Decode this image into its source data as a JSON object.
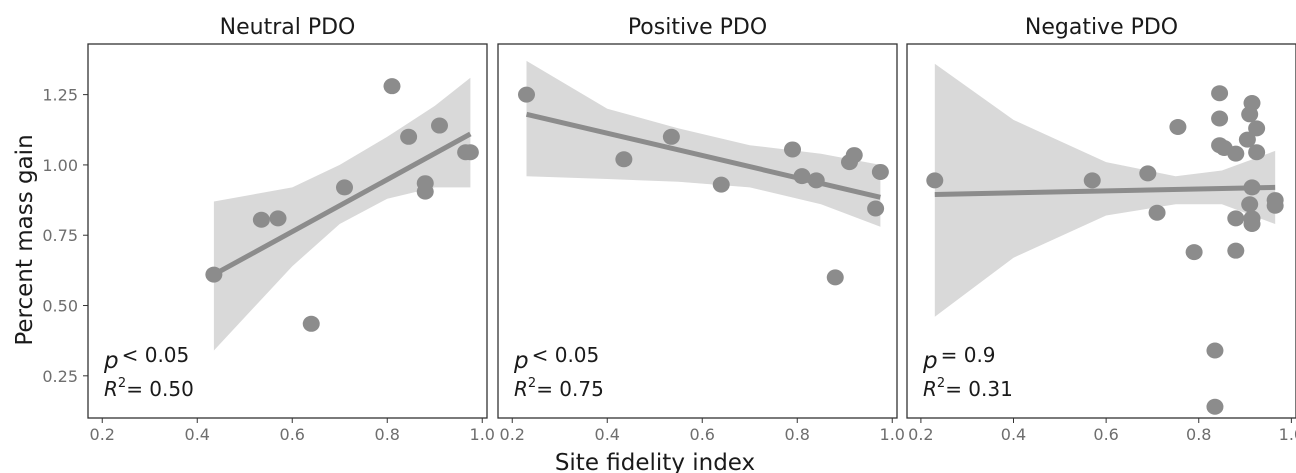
{
  "colors": {
    "point": "#8c8c8c",
    "line": "#8c8c8c",
    "ribbon": "#d9d9d9",
    "frame": "#333333",
    "text": "#1a1a1a",
    "tick_text": "#6e6e6e"
  },
  "chart_data": [
    {
      "type": "scatter",
      "title": "Neutral PDO",
      "xlabel": "Site fidelity index",
      "ylabel": "Percent mass gain",
      "xlim": [
        0.17,
        1.01
      ],
      "ylim": [
        0.1,
        1.43
      ],
      "xticks": [
        "0.2",
        "0.4",
        "0.6",
        "0.8",
        "1.0"
      ],
      "yticks": [
        "0.25",
        "0.50",
        "0.75",
        "1.00",
        "1.25"
      ],
      "grid": false,
      "points": [
        {
          "x": 0.435,
          "y": 0.61
        },
        {
          "x": 0.535,
          "y": 0.805
        },
        {
          "x": 0.57,
          "y": 0.81
        },
        {
          "x": 0.64,
          "y": 0.435
        },
        {
          "x": 0.71,
          "y": 0.92
        },
        {
          "x": 0.81,
          "y": 1.28
        },
        {
          "x": 0.845,
          "y": 1.1
        },
        {
          "x": 0.88,
          "y": 0.935
        },
        {
          "x": 0.88,
          "y": 0.905
        },
        {
          "x": 0.91,
          "y": 1.14
        },
        {
          "x": 0.965,
          "y": 1.045
        },
        {
          "x": 0.975,
          "y": 1.045
        }
      ],
      "fit_line": [
        {
          "x": 0.435,
          "y": 0.61
        },
        {
          "x": 0.975,
          "y": 1.11
        }
      ],
      "confidence_band": {
        "x": [
          0.435,
          0.6,
          0.7,
          0.8,
          0.9,
          0.975
        ],
        "upper": [
          0.87,
          0.92,
          1.0,
          1.1,
          1.21,
          1.31
        ],
        "lower": [
          0.34,
          0.64,
          0.79,
          0.88,
          0.92,
          0.92
        ]
      },
      "p_label": "p",
      "p_value": "< 0.05",
      "r2_prefix": "R",
      "r2_exponent": "2",
      "r2_value": "= 0.50"
    },
    {
      "type": "scatter",
      "title": "Positive PDO",
      "xlabel": "Site fidelity index",
      "ylabel": "Percent mass gain",
      "xlim": [
        0.17,
        1.01
      ],
      "ylim": [
        0.1,
        1.43
      ],
      "xticks": [
        "0.2",
        "0.4",
        "0.6",
        "0.8",
        "1.0"
      ],
      "yticks": [
        "0.25",
        "0.50",
        "0.75",
        "1.00",
        "1.25"
      ],
      "grid": false,
      "points": [
        {
          "x": 0.23,
          "y": 1.25
        },
        {
          "x": 0.435,
          "y": 1.02
        },
        {
          "x": 0.535,
          "y": 1.1
        },
        {
          "x": 0.64,
          "y": 0.93
        },
        {
          "x": 0.79,
          "y": 1.055
        },
        {
          "x": 0.81,
          "y": 0.96
        },
        {
          "x": 0.84,
          "y": 0.945
        },
        {
          "x": 0.88,
          "y": 0.6
        },
        {
          "x": 0.91,
          "y": 1.01
        },
        {
          "x": 0.92,
          "y": 1.035
        },
        {
          "x": 0.965,
          "y": 0.845
        },
        {
          "x": 0.975,
          "y": 0.975
        }
      ],
      "fit_line": [
        {
          "x": 0.23,
          "y": 1.18
        },
        {
          "x": 0.975,
          "y": 0.885
        }
      ],
      "confidence_band": {
        "x": [
          0.23,
          0.4,
          0.55,
          0.7,
          0.85,
          0.975
        ],
        "upper": [
          1.37,
          1.2,
          1.13,
          1.07,
          1.04,
          1.0
        ],
        "lower": [
          0.96,
          0.95,
          0.94,
          0.92,
          0.86,
          0.78
        ]
      },
      "p_label": "p",
      "p_value": "< 0.05",
      "r2_prefix": "R",
      "r2_exponent": "2",
      "r2_value": "= 0.75"
    },
    {
      "type": "scatter",
      "title": "Negative PDO",
      "xlabel": "Site fidelity index",
      "ylabel": "Percent mass gain",
      "xlim": [
        0.17,
        1.01
      ],
      "ylim": [
        0.1,
        1.43
      ],
      "xticks": [
        "0.2",
        "0.4",
        "0.6",
        "0.8",
        "1.0"
      ],
      "yticks": [
        "0.25",
        "0.50",
        "0.75",
        "1.00",
        "1.25"
      ],
      "grid": false,
      "points": [
        {
          "x": 0.23,
          "y": 0.945
        },
        {
          "x": 0.57,
          "y": 0.945
        },
        {
          "x": 0.69,
          "y": 0.97
        },
        {
          "x": 0.71,
          "y": 0.83
        },
        {
          "x": 0.755,
          "y": 1.135
        },
        {
          "x": 0.79,
          "y": 0.69
        },
        {
          "x": 0.835,
          "y": 0.34
        },
        {
          "x": 0.835,
          "y": 0.14
        },
        {
          "x": 0.845,
          "y": 1.255
        },
        {
          "x": 0.845,
          "y": 1.165
        },
        {
          "x": 0.845,
          "y": 1.07
        },
        {
          "x": 0.855,
          "y": 1.06
        },
        {
          "x": 0.88,
          "y": 1.04
        },
        {
          "x": 0.88,
          "y": 0.81
        },
        {
          "x": 0.88,
          "y": 0.695
        },
        {
          "x": 0.905,
          "y": 1.09
        },
        {
          "x": 0.91,
          "y": 1.18
        },
        {
          "x": 0.91,
          "y": 0.86
        },
        {
          "x": 0.915,
          "y": 1.22
        },
        {
          "x": 0.915,
          "y": 0.92
        },
        {
          "x": 0.915,
          "y": 0.81
        },
        {
          "x": 0.915,
          "y": 0.79
        },
        {
          "x": 0.925,
          "y": 1.13
        },
        {
          "x": 0.925,
          "y": 1.045
        },
        {
          "x": 0.965,
          "y": 0.875
        },
        {
          "x": 0.965,
          "y": 0.855
        }
      ],
      "fit_line": [
        {
          "x": 0.23,
          "y": 0.895
        },
        {
          "x": 0.965,
          "y": 0.92
        }
      ],
      "confidence_band": {
        "x": [
          0.23,
          0.4,
          0.6,
          0.75,
          0.85,
          0.965
        ],
        "upper": [
          1.36,
          1.16,
          1.01,
          0.96,
          0.98,
          1.05
        ],
        "lower": [
          0.46,
          0.67,
          0.82,
          0.86,
          0.86,
          0.79
        ]
      },
      "p_label": "p",
      "p_value": "= 0.9",
      "r2_prefix": "R",
      "r2_exponent": "2",
      "r2_value": "= 0.31"
    }
  ]
}
